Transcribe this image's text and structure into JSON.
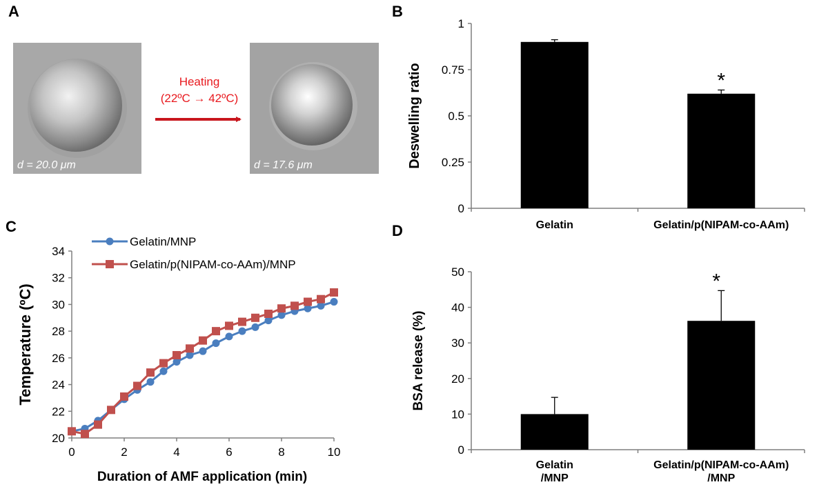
{
  "panels": {
    "A": {
      "label": "A",
      "before_caption": "d = 20.0 μm",
      "after_caption": "d = 17.6 μm",
      "arrow_label_line1": "Heating",
      "arrow_label_line2": "(22ºC → 42ºC)",
      "arrow_color": "#c8161d"
    },
    "B": {
      "label": "B"
    },
    "C": {
      "label": "C"
    },
    "D": {
      "label": "D"
    }
  },
  "chart_data": [
    {
      "id": "B",
      "type": "bar",
      "categories": [
        "Gelatin",
        "Gelatin/p(NIPAM-co-AAm)"
      ],
      "values": [
        0.9,
        0.62
      ],
      "errors": [
        0.012,
        0.02
      ],
      "significance": [
        "",
        "*"
      ],
      "title": "",
      "xlabel": "",
      "ylabel": "Deswelling ratio",
      "ylim": [
        0,
        1
      ],
      "yticks": [
        0,
        0.25,
        0.5,
        0.75,
        1
      ],
      "ytick_labels": [
        "0",
        "0.25",
        "0.5",
        "0.75",
        "1"
      ],
      "bar_color": "#000000"
    },
    {
      "id": "C",
      "type": "line",
      "title": "",
      "xlabel": "Duration of AMF application (min)",
      "ylabel": "Temperature (ºC)",
      "xlim": [
        0,
        10
      ],
      "ylim": [
        20,
        34
      ],
      "xticks": [
        0,
        2,
        4,
        6,
        8,
        10
      ],
      "yticks": [
        20,
        22,
        24,
        26,
        28,
        30,
        32,
        34
      ],
      "x": [
        0,
        0.5,
        1,
        1.5,
        2,
        2.5,
        3,
        3.5,
        4,
        4.5,
        5,
        5.5,
        6,
        6.5,
        7,
        7.5,
        8,
        8.5,
        9,
        9.5,
        10
      ],
      "series": [
        {
          "name": "Gelatin/MNP",
          "color": "#4a7ebf",
          "marker": "circle",
          "values": [
            20.5,
            20.7,
            21.3,
            22.1,
            22.9,
            23.6,
            24.2,
            25.0,
            25.7,
            26.2,
            26.5,
            27.1,
            27.6,
            28.0,
            28.3,
            28.8,
            29.2,
            29.5,
            29.7,
            29.9,
            30.2
          ]
        },
        {
          "name": "Gelatin/p(NIPAM-co-AAm)/MNP",
          "color": "#c0504d",
          "marker": "square",
          "values": [
            20.5,
            20.3,
            21.0,
            22.1,
            23.1,
            23.9,
            24.9,
            25.6,
            26.2,
            26.7,
            27.3,
            28.0,
            28.4,
            28.7,
            29.0,
            29.3,
            29.7,
            29.9,
            30.2,
            30.4,
            30.9
          ]
        }
      ],
      "legend": "top-left"
    },
    {
      "id": "D",
      "type": "bar",
      "categories": [
        "Gelatin\n/MNP",
        "Gelatin/p(NIPAM-co-AAm)\n/MNP"
      ],
      "values": [
        10,
        36.2
      ],
      "errors": [
        4.7,
        8.5
      ],
      "significance": [
        "",
        "*"
      ],
      "title": "",
      "xlabel": "",
      "ylabel": "BSA release (%)",
      "ylim": [
        0,
        50
      ],
      "yticks": [
        0,
        10,
        20,
        30,
        40,
        50
      ],
      "ytick_labels": [
        "0",
        "10",
        "20",
        "30",
        "40",
        "50"
      ],
      "bar_color": "#000000"
    }
  ]
}
